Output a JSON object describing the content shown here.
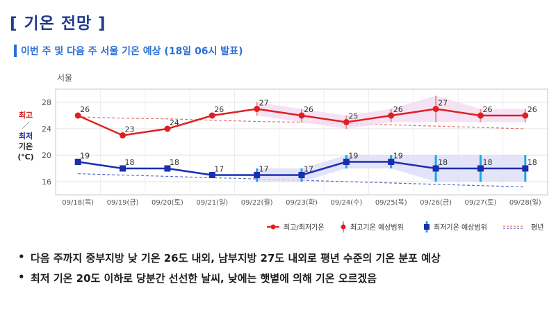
{
  "header": {
    "title": "[ 기온 전망 ]",
    "subtitle": "이번 주 및 다음 주 서울 기온 예상 (18일 06시 발표)"
  },
  "ylabel": {
    "high": "최고",
    "sep": "／",
    "low": "최저",
    "rest1": "기온",
    "unit": "(℃)"
  },
  "chart_data": {
    "type": "line",
    "location": "서울",
    "categories": [
      "09/18(목)",
      "09/19(금)",
      "09/20(토)",
      "09/21(일)",
      "09/22(월)",
      "09/23(화)",
      "09/24(수)",
      "09/25(목)",
      "09/26(금)",
      "09/27(토)",
      "09/28(일)"
    ],
    "ylim": [
      14,
      30
    ],
    "yticks": [
      16,
      20,
      24,
      28
    ],
    "series": [
      {
        "name": "최고기온",
        "color": "#e02020",
        "values": [
          26,
          23,
          24,
          26,
          27,
          26,
          25,
          26,
          27,
          26,
          26
        ],
        "range": [
          null,
          null,
          null,
          null,
          [
            26,
            28
          ],
          [
            25,
            27
          ],
          [
            24,
            26
          ],
          [
            25,
            27
          ],
          [
            25,
            29
          ],
          [
            25,
            27
          ],
          [
            25,
            27
          ]
        ]
      },
      {
        "name": "최저기온",
        "color": "#1a2fb0",
        "values": [
          19,
          18,
          18,
          17,
          17,
          17,
          19,
          19,
          18,
          18,
          18
        ],
        "range": [
          null,
          null,
          null,
          null,
          [
            16,
            18
          ],
          [
            16,
            18
          ],
          [
            18,
            20
          ],
          [
            18,
            20
          ],
          [
            16,
            20
          ],
          [
            16,
            20
          ],
          [
            16,
            20
          ]
        ]
      }
    ],
    "normal_high": [
      25.8,
      25.6,
      25.5,
      25.3,
      25.1,
      25.0,
      24.8,
      24.6,
      24.4,
      24.2,
      24.0
    ],
    "normal_low": [
      17.2,
      17.0,
      16.8,
      16.6,
      16.4,
      16.2,
      16.0,
      15.8,
      15.6,
      15.4,
      15.2
    ],
    "legend": [
      {
        "key": "both",
        "label": "최고/최저기온"
      },
      {
        "key": "high",
        "label": "최고기온 예상범위"
      },
      {
        "key": "low",
        "label": "최저기온 예상범위"
      },
      {
        "key": "normal",
        "label": "평년"
      }
    ],
    "legend_position": "bottom-right",
    "grid": true
  },
  "notes": [
    "다음 주까지 중부지방 낮 기온 26도 내외, 남부지방 27도 내외로 평년 수준의 기온 분포 예상",
    "최저 기온 20도 이하로 당분간 선선한 날씨, 낮에는 햇볕에 의해 기온 오르겠음"
  ]
}
